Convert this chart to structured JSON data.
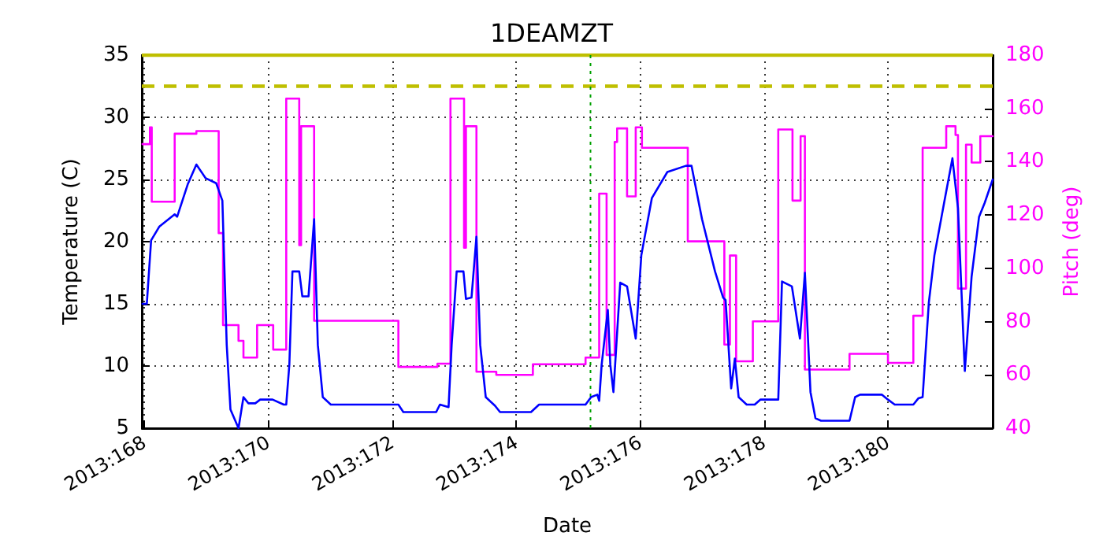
{
  "chart_data": {
    "type": "line",
    "title": "1DEAMZT",
    "xlabel": "Date",
    "ylabel": "Temperature (C)",
    "y2label": "Pitch (deg)",
    "xlim": [
      "2013-06-16T23:02",
      "2013-06-30T16:34"
    ],
    "xticks": [
      {
        "value": "2013-06-17",
        "label": "2013:168"
      },
      {
        "value": "2013-06-19",
        "label": "2013:170"
      },
      {
        "value": "2013-06-21",
        "label": "2013:172"
      },
      {
        "value": "2013-06-23",
        "label": "2013:174"
      },
      {
        "value": "2013-06-25",
        "label": "2013:176"
      },
      {
        "value": "2013-06-27",
        "label": "2013:178"
      },
      {
        "value": "2013-06-29",
        "label": "2013:180"
      }
    ],
    "ylim": [
      5,
      35
    ],
    "yticks": [
      5,
      10,
      15,
      20,
      25,
      30,
      35
    ],
    "y2lim": [
      40,
      180
    ],
    "y2ticks": [
      40,
      60,
      80,
      100,
      120,
      140,
      160,
      180
    ],
    "grid": true,
    "marker": "none",
    "ref_lines": [
      {
        "axis": "y",
        "value": 32.5,
        "color": "#bfbf00",
        "line_style": "dashed"
      },
      {
        "axis": "y",
        "value": 35,
        "color": "#bfbf00",
        "line_style": "solid"
      },
      {
        "axis": "x",
        "value": "2013-06-24T04:48",
        "color": "#00a000",
        "line_style": "dotted"
      }
    ],
    "series": [
      {
        "type": "line",
        "color": "#0000ff",
        "line_style": "solid",
        "x": [
          "2013-06-16T23:17",
          "2013-06-17T00:58",
          "2013-06-17T02:38",
          "2013-06-17T05:46",
          "2013-06-17T11:46",
          "2013-06-17T12:43",
          "2013-06-17T16:48",
          "2013-06-17T20:10",
          "2013-06-17T23:46",
          "2013-06-18T03:50",
          "2013-06-18T06:14",
          "2013-06-18T07:55",
          "2013-06-18T09:22",
          "2013-06-18T12:29",
          "2013-06-18T14:24",
          "2013-06-18T16:19",
          "2013-06-18T18:58",
          "2013-06-18T20:53",
          "2013-06-19T01:41",
          "2013-06-19T06:00",
          "2013-06-19T06:58",
          "2013-06-19T08:10",
          "2013-06-19T09:22",
          "2013-06-19T12:00",
          "2013-06-19T13:12",
          "2013-06-19T15:36",
          "2013-06-19T17:46",
          "2013-06-19T19:12",
          "2013-06-19T21:07",
          "2013-06-20T00:14",
          "2013-06-21T02:24",
          "2013-06-21T04:19",
          "2013-06-21T17:02",
          "2013-06-21T18:29",
          "2013-06-21T21:50",
          "2013-06-21T23:02",
          "2013-06-22T00:58",
          "2013-06-22T03:36",
          "2013-06-22T04:34",
          "2013-06-22T06:43",
          "2013-06-22T08:38",
          "2013-06-22T10:05",
          "2013-06-22T12:14",
          "2013-06-22T15:50",
          "2013-06-22T17:46",
          "2013-06-23T05:46",
          "2013-06-23T08:53",
          "2013-06-24T02:53",
          "2013-06-24T05:02",
          "2013-06-24T07:26",
          "2013-06-24T08:10",
          "2013-06-24T09:07",
          "2013-06-24T11:31",
          "2013-06-24T12:29",
          "2013-06-24T13:41",
          "2013-06-24T16:19",
          "2013-06-24T18:58",
          "2013-06-24T22:19",
          "2013-06-25T00:29",
          "2013-06-25T04:34",
          "2013-06-25T10:34",
          "2013-06-25T17:46",
          "2013-06-25T19:55",
          "2013-06-26T00:00",
          "2013-06-26T05:02",
          "2013-06-26T08:10",
          "2013-06-26T09:07",
          "2013-06-26T11:17",
          "2013-06-26T12:43",
          "2013-06-26T14:10",
          "2013-06-26T17:17",
          "2013-06-26T20:24",
          "2013-06-26T22:34",
          "2013-06-27T05:31",
          "2013-06-27T06:58",
          "2013-06-27T10:48",
          "2013-06-27T13:55",
          "2013-06-27T15:50",
          "2013-06-27T18:00",
          "2013-06-27T19:55",
          "2013-06-27T22:05",
          "2013-06-28T09:07",
          "2013-06-28T11:17",
          "2013-06-28T13:12",
          "2013-06-28T21:36",
          "2013-06-29T00:00",
          "2013-06-29T02:38",
          "2013-06-29T09:50",
          "2013-06-29T11:46",
          "2013-06-29T13:26",
          "2013-06-29T15:50",
          "2013-06-29T18:00",
          "2013-06-29T22:05",
          "2013-06-30T00:58",
          "2013-06-30T03:07",
          "2013-06-30T05:46",
          "2013-06-30T08:24",
          "2013-06-30T11:17",
          "2013-06-30T13:26",
          "2013-06-30T16:34"
        ],
        "values": [
          15.0,
          15.0,
          20.1,
          21.2,
          22.2,
          22.0,
          24.6,
          26.2,
          25.1,
          24.7,
          23.3,
          11.7,
          6.5,
          5.0,
          7.5,
          7.0,
          7.0,
          7.3,
          7.3,
          6.9,
          6.9,
          10.1,
          17.6,
          17.6,
          15.6,
          15.6,
          21.8,
          11.7,
          7.5,
          6.9,
          6.9,
          6.3,
          6.3,
          6.9,
          6.7,
          11.7,
          17.6,
          17.6,
          15.4,
          15.5,
          20.4,
          11.7,
          7.5,
          6.8,
          6.3,
          6.3,
          6.9,
          6.9,
          7.5,
          7.7,
          7.2,
          10.1,
          14.5,
          10.1,
          7.9,
          16.7,
          16.4,
          12.2,
          18.9,
          23.5,
          25.6,
          26.1,
          26.1,
          21.8,
          17.6,
          15.5,
          15.3,
          8.2,
          10.6,
          7.5,
          6.9,
          6.9,
          7.3,
          7.3,
          16.8,
          16.4,
          12.2,
          17.5,
          7.9,
          5.8,
          5.6,
          5.6,
          7.5,
          7.7,
          7.7,
          7.3,
          6.9,
          6.9,
          7.4,
          7.5,
          15.1,
          18.9,
          23.5,
          26.7,
          22.7,
          9.6,
          17.2,
          22.0,
          23.1,
          25.0
        ]
      },
      {
        "type": "step",
        "axis": "y2",
        "color": "#ff00ff",
        "line_style": "solid",
        "x": [
          "2013-06-16T23:17",
          "2013-06-17T02:10",
          "2013-06-17T02:53",
          "2013-06-17T11:46",
          "2013-06-17T20:10",
          "2013-06-18T04:48",
          "2013-06-18T06:29",
          "2013-06-18T12:29",
          "2013-06-18T14:24",
          "2013-06-18T19:41",
          "2013-06-19T01:55",
          "2013-06-19T06:58",
          "2013-06-19T12:00",
          "2013-06-19T12:43",
          "2013-06-19T17:46",
          "2013-06-21T02:24",
          "2013-06-21T17:31",
          "2013-06-21T22:34",
          "2013-06-22T03:50",
          "2013-06-22T04:34",
          "2013-06-22T08:38",
          "2013-06-22T16:19",
          "2013-06-23T06:29",
          "2013-06-24T02:53",
          "2013-06-24T08:10",
          "2013-06-24T11:02",
          "2013-06-24T14:10",
          "2013-06-24T15:07",
          "2013-06-24T18:58",
          "2013-06-24T22:19",
          "2013-06-25T00:43",
          "2013-06-25T18:29",
          "2013-06-26T08:38",
          "2013-06-26T10:48",
          "2013-06-26T13:12",
          "2013-06-26T19:41",
          "2013-06-27T05:31",
          "2013-06-27T11:02",
          "2013-06-27T14:10",
          "2013-06-27T15:50",
          "2013-06-28T09:07",
          "2013-06-29T00:00",
          "2013-06-29T09:50",
          "2013-06-29T13:26",
          "2013-06-29T22:34",
          "2013-06-30T02:10",
          "2013-06-30T03:07",
          "2013-06-30T06:14",
          "2013-06-30T08:24",
          "2013-06-30T11:46",
          "2013-06-30T16:34"
        ],
        "values": [
          146.6,
          152.9,
          125.0,
          150.5,
          151.5,
          113.2,
          78.7,
          72.8,
          66.5,
          78.7,
          69.5,
          163.7,
          108.7,
          153.3,
          80.3,
          63.0,
          64.2,
          163.7,
          107.7,
          153.3,
          61.2,
          60.0,
          64.0,
          66.5,
          128.0,
          67.5,
          147.4,
          152.5,
          127.0,
          152.9,
          145.2,
          110.1,
          71.4,
          104.8,
          65.1,
          80.1,
          152.1,
          125.4,
          149.6,
          62.0,
          67.9,
          64.5,
          82.2,
          145.2,
          153.3,
          150.0,
          92.4,
          146.4,
          139.7,
          149.6,
          149.6
        ]
      }
    ]
  }
}
